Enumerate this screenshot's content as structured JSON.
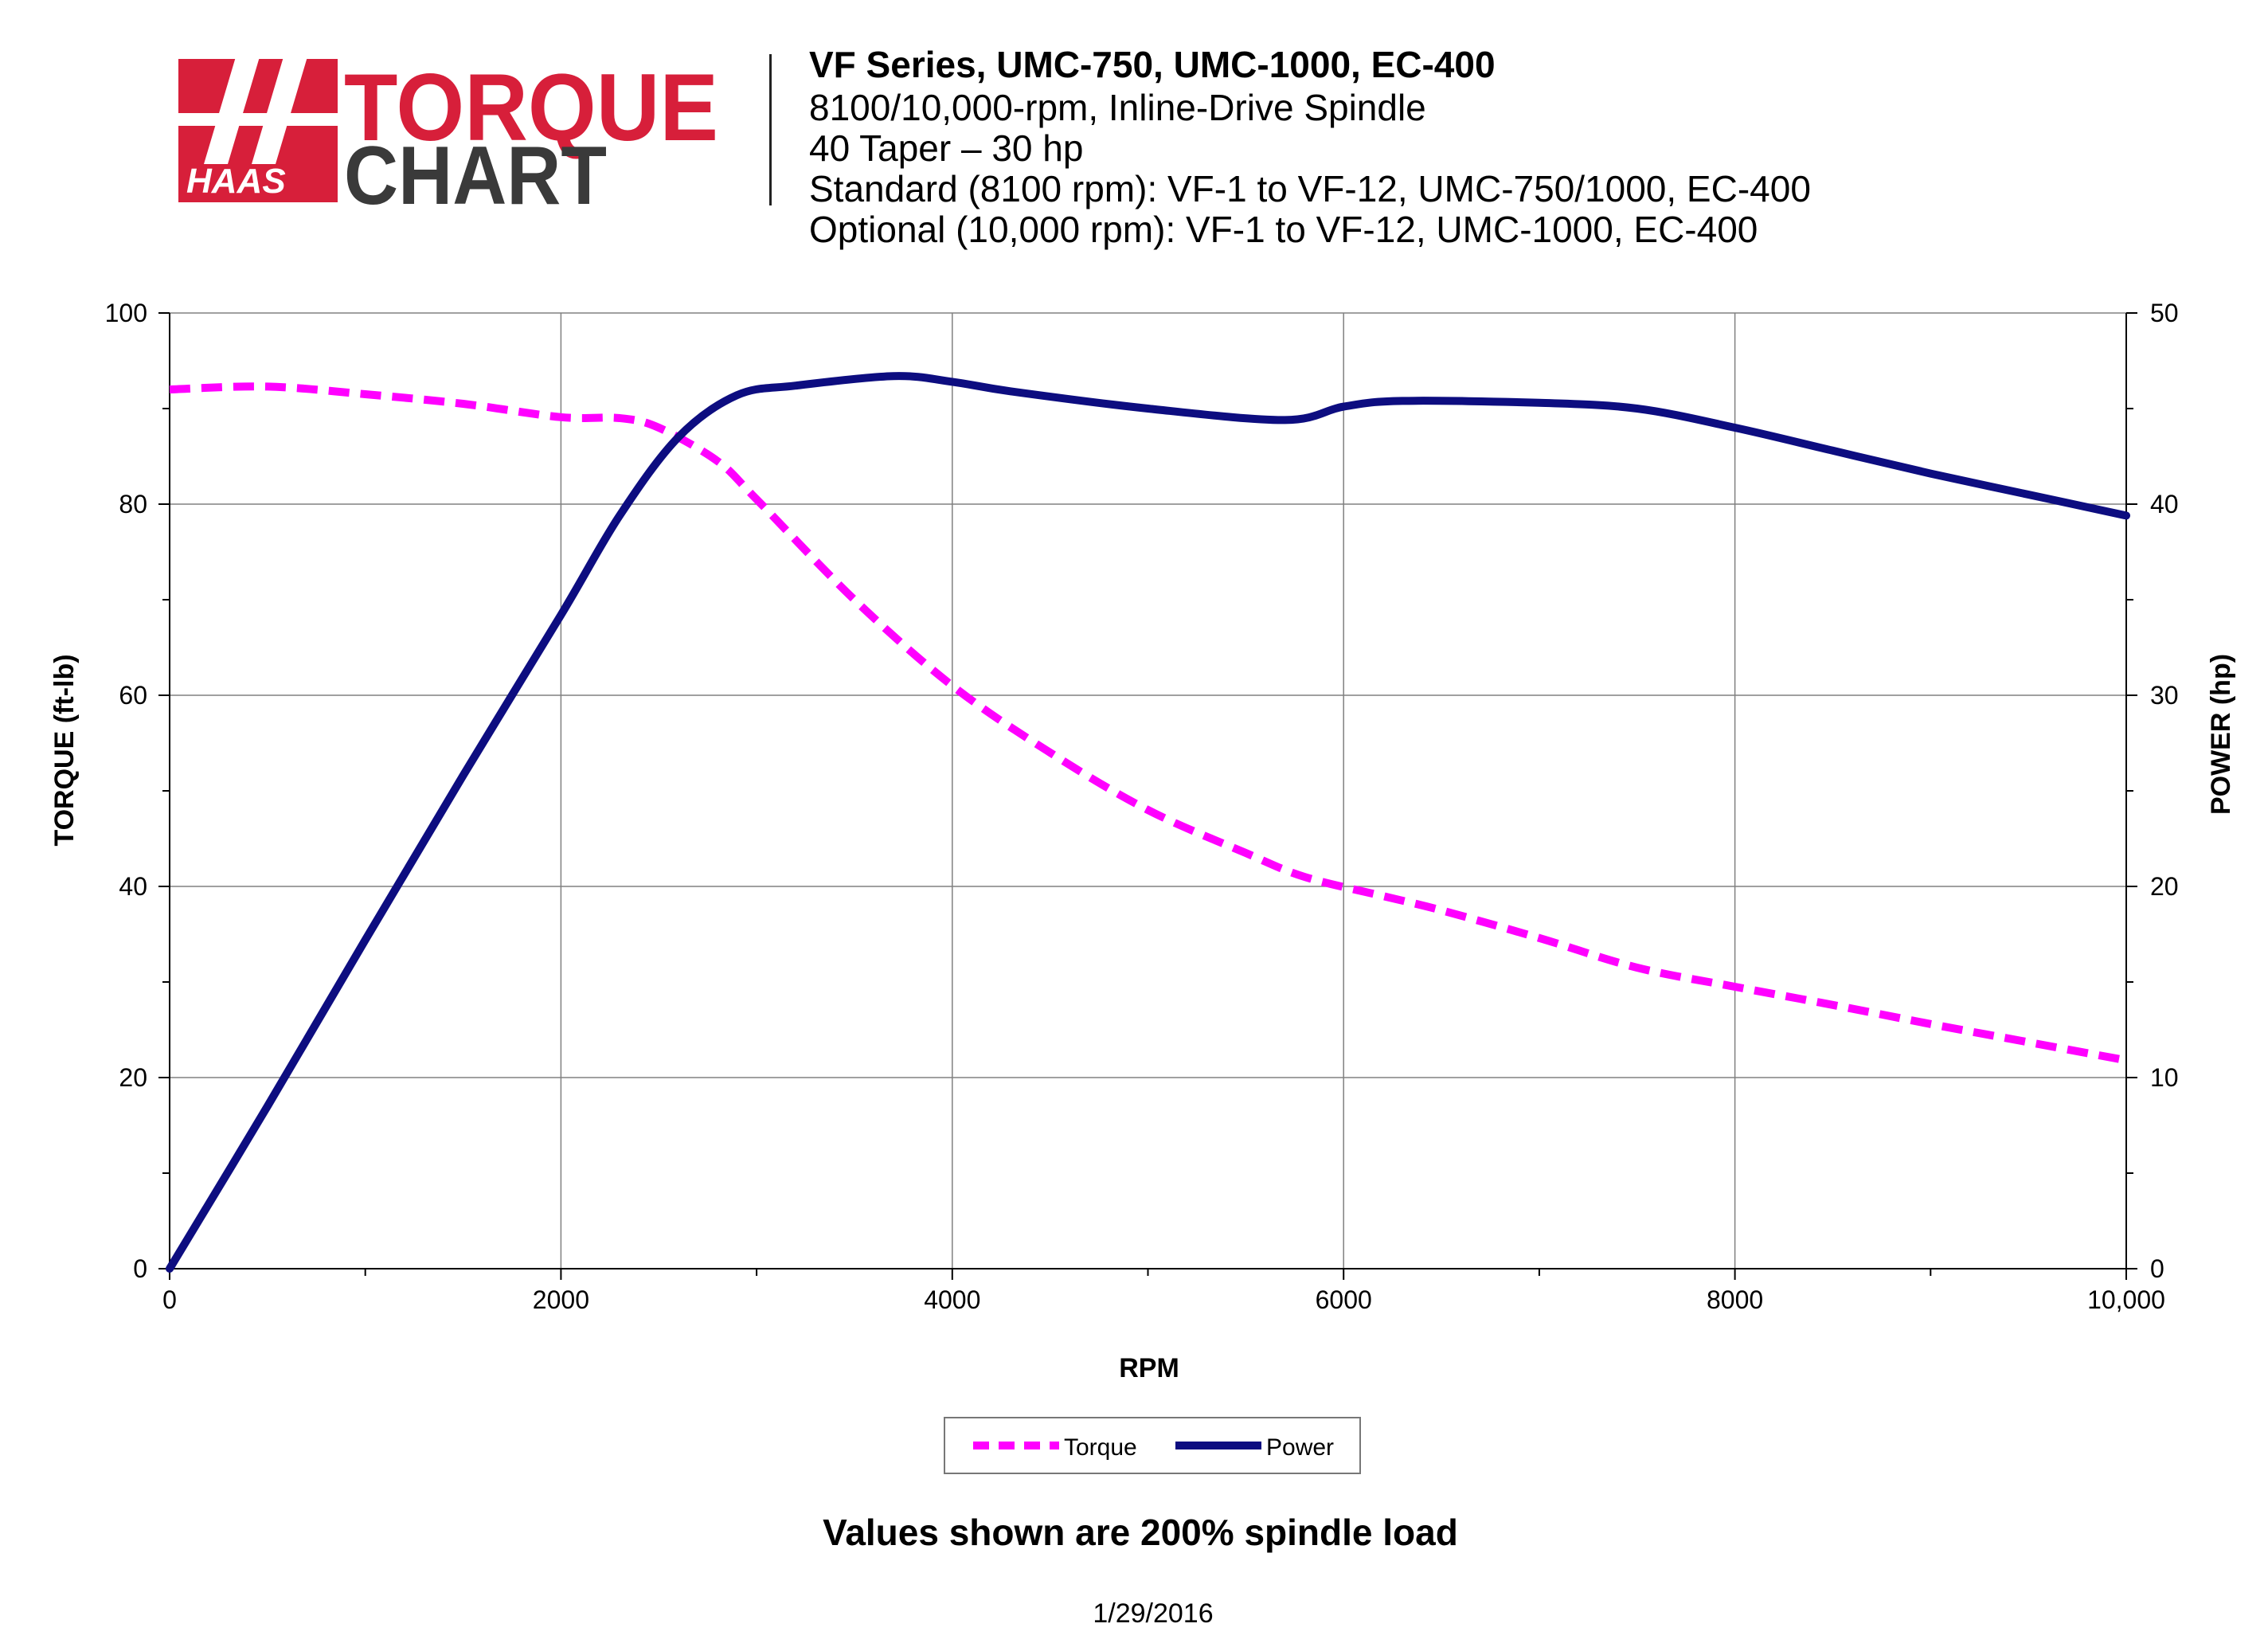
{
  "header": {
    "logo": {
      "brand": "HAAS",
      "word1": "TORQUE",
      "word2": "CHART",
      "colors": {
        "red": "#d71f3a",
        "dark": "#3a3a3a"
      }
    },
    "title": "VF Series, UMC-750, UMC-1000, EC-400",
    "lines": [
      "8100/10,000-rpm, Inline-Drive Spindle",
      "40 Taper – 30 hp",
      "Standard (8100 rpm): VF-1 to VF-12, UMC-750/1000, EC-400",
      "Optional (10,000 rpm): VF-1 to VF-12, UMC-1000, EC-400"
    ]
  },
  "chart_data": {
    "type": "line",
    "xlabel": "RPM",
    "ylabel": "TORQUE (ft-lb)",
    "y2label": "POWER (hp)",
    "xlim": [
      0,
      10000
    ],
    "ylim": [
      0,
      100
    ],
    "y2lim": [
      0,
      50
    ],
    "x_ticks": [
      "0",
      "2000",
      "4000",
      "6000",
      "8000",
      "10,000"
    ],
    "x_tick_values": [
      0,
      2000,
      4000,
      6000,
      8000,
      10000
    ],
    "y_ticks": [
      "0",
      "20",
      "40",
      "60",
      "80",
      "100"
    ],
    "y_tick_values": [
      0,
      20,
      40,
      60,
      80,
      100
    ],
    "y2_ticks": [
      "0",
      "10",
      "20",
      "30",
      "40",
      "50"
    ],
    "y2_tick_values": [
      0,
      10,
      20,
      30,
      40,
      50
    ],
    "grid": true,
    "legend_position": "bottom-center",
    "series": [
      {
        "name": "Torque",
        "axis": "left",
        "style": "dashed",
        "color": "#ff00ff",
        "x": [
          0,
          500,
          1000,
          1500,
          2000,
          2300,
          2500,
          2800,
          3000,
          3500,
          4000,
          4500,
          5000,
          5500,
          5800,
          6200,
          6500,
          7000,
          7500,
          8000,
          8500,
          9000,
          9500,
          10000
        ],
        "y": [
          92,
          92.3,
          91.5,
          90.5,
          89.1,
          89,
          88,
          84.5,
          80.5,
          70,
          61,
          54,
          48,
          43.5,
          41,
          39,
          37.5,
          34.6,
          31.5,
          29.5,
          27.6,
          25.6,
          23.7,
          21.8
        ]
      },
      {
        "name": "Power",
        "axis": "right",
        "style": "solid",
        "color": "#0d0d80",
        "x": [
          0,
          500,
          1000,
          1500,
          2000,
          2300,
          2600,
          2900,
          3200,
          3700,
          4000,
          4300,
          5000,
          5700,
          6000,
          6300,
          7000,
          7500,
          8000,
          8500,
          9000,
          9500,
          10000
        ],
        "y": [
          0,
          8.5,
          17.2,
          25.8,
          34.2,
          39.4,
          43.5,
          45.7,
          46.2,
          46.7,
          46.4,
          45.9,
          45,
          44.4,
          45.1,
          45.4,
          45.3,
          45,
          44,
          42.8,
          41.6,
          40.5,
          39.4
        ]
      }
    ]
  },
  "footer": {
    "note": "Values shown are 200% spindle load",
    "date": "1/29/2016"
  }
}
